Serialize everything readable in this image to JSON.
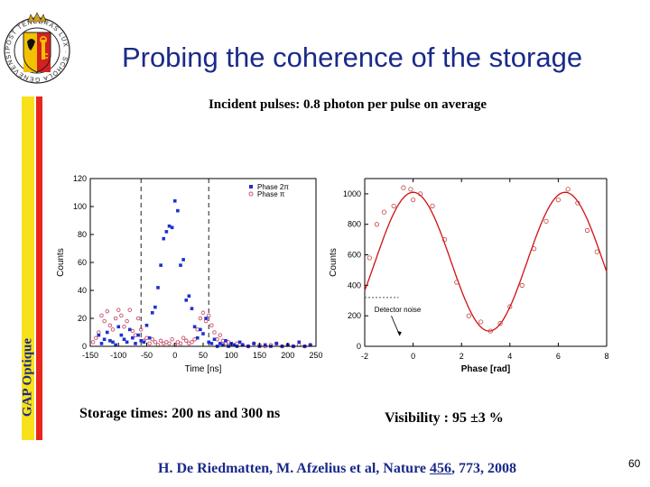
{
  "slide": {
    "title": "Probing the coherence of the storage",
    "subtitle": "Incident pulses: 0.8 photon per pulse on average",
    "sidebar_label": "GAP Optique",
    "caption_left": "Storage times: 200 ns and 300 ns",
    "caption_right": "Visibility : 95 ±3 %",
    "citation_prefix": "H. De Riedmatten, M. Afzelius et al, Nature ",
    "citation_volume": "456",
    "citation_suffix": ", 773, 2008",
    "page_number": "60",
    "logo_text": "POST TENEBRAS LUX · SCHOLA GENEVENSIS"
  },
  "colors": {
    "title": "#1a2a8a",
    "sidebar_yellow": "#f8e11a",
    "sidebar_red": "#e8261a",
    "series_phase_2pi": "#1f2fd0",
    "series_phase_pi": "#c8506a",
    "fit_curve": "#d01010",
    "dashed_lines": "#333333"
  },
  "chart_data": [
    {
      "type": "scatter",
      "xlabel": "Time [ns]",
      "ylabel": "Counts",
      "xlim": [
        -150,
        250
      ],
      "ylim": [
        0,
        120
      ],
      "x_ticks": [
        -150,
        -100,
        -50,
        0,
        50,
        100,
        150,
        200,
        250
      ],
      "y_ticks": [
        0,
        20,
        40,
        60,
        80,
        100,
        120
      ],
      "markers": [
        -60,
        60
      ],
      "legend": [
        "Phase 2π",
        "Phase π"
      ],
      "series": [
        {
          "name": "Phase 2π",
          "x": [
            -135,
            -130,
            -125,
            -120,
            -115,
            -110,
            -105,
            -100,
            -95,
            -90,
            -85,
            -80,
            -75,
            -70,
            -65,
            -60,
            -55,
            -50,
            -45,
            -40,
            -35,
            -30,
            -25,
            -20,
            -15,
            -10,
            -5,
            0,
            5,
            10,
            15,
            20,
            25,
            30,
            35,
            40,
            45,
            50,
            55,
            60,
            65,
            70,
            75,
            80,
            85,
            90,
            95,
            100,
            105,
            110,
            115,
            120,
            130,
            140,
            150,
            160,
            170,
            180,
            190,
            200,
            210,
            220,
            230,
            240
          ],
          "y": [
            8,
            2,
            5,
            10,
            4,
            3,
            1,
            14,
            8,
            5,
            3,
            12,
            6,
            2,
            8,
            4,
            3,
            15,
            6,
            24,
            28,
            42,
            58,
            77,
            82,
            86,
            85,
            104,
            97,
            58,
            62,
            33,
            36,
            27,
            14,
            6,
            12,
            9,
            20,
            3,
            2,
            5,
            0,
            2,
            1,
            4,
            0,
            2,
            1,
            0,
            3,
            1,
            0,
            2,
            0,
            1,
            0,
            2,
            0,
            1,
            0,
            3,
            0,
            1
          ]
        },
        {
          "name": "Phase π",
          "x": [
            -145,
            -140,
            -135,
            -130,
            -125,
            -120,
            -115,
            -110,
            -105,
            -100,
            -95,
            -90,
            -85,
            -80,
            -75,
            -70,
            -65,
            -60,
            -55,
            -50,
            -45,
            -40,
            -35,
            -30,
            -25,
            -20,
            -15,
            -10,
            -5,
            0,
            5,
            10,
            15,
            20,
            25,
            30,
            35,
            40,
            45,
            50,
            55,
            60,
            65,
            70,
            75,
            80,
            85,
            90,
            95,
            100,
            110,
            120,
            130,
            140,
            150,
            160,
            170,
            180,
            190,
            200,
            210,
            220,
            230,
            240
          ],
          "y": [
            3,
            6,
            10,
            22,
            18,
            25,
            15,
            12,
            20,
            26,
            22,
            14,
            18,
            26,
            11,
            8,
            20,
            12,
            4,
            6,
            2,
            5,
            3,
            1,
            4,
            2,
            3,
            2,
            5,
            1,
            3,
            2,
            6,
            4,
            2,
            3,
            5,
            12,
            20,
            24,
            18,
            22,
            15,
            10,
            5,
            8,
            4,
            2,
            3,
            1,
            2,
            1,
            0,
            2,
            1,
            0,
            1,
            2,
            0,
            1,
            0,
            1,
            0,
            1
          ]
        }
      ]
    },
    {
      "type": "scatter",
      "xlabel": "Phase [rad]",
      "ylabel": "Counts",
      "xlim": [
        -2,
        8
      ],
      "ylim": [
        0,
        1100
      ],
      "x_ticks": [
        -2,
        0,
        2,
        4,
        6,
        8
      ],
      "y_ticks": [
        0,
        200,
        400,
        600,
        800,
        1000
      ],
      "annotation": "Detector noise",
      "fit": {
        "offset": 555,
        "amplitude": 455,
        "period": 6.2832,
        "peak_at": 0.0
      },
      "points": {
        "x": [
          -1.8,
          -1.5,
          -1.2,
          -0.8,
          -0.4,
          -0.1,
          0.0,
          0.3,
          0.8,
          1.3,
          1.8,
          2.3,
          2.8,
          3.2,
          3.6,
          4.0,
          4.5,
          5.0,
          5.5,
          6.0,
          6.4,
          6.8,
          7.2,
          7.6
        ],
        "y": [
          580,
          800,
          880,
          920,
          1040,
          1030,
          960,
          1000,
          920,
          700,
          420,
          200,
          160,
          100,
          150,
          260,
          400,
          640,
          820,
          960,
          1030,
          940,
          760,
          620
        ]
      }
    }
  ]
}
